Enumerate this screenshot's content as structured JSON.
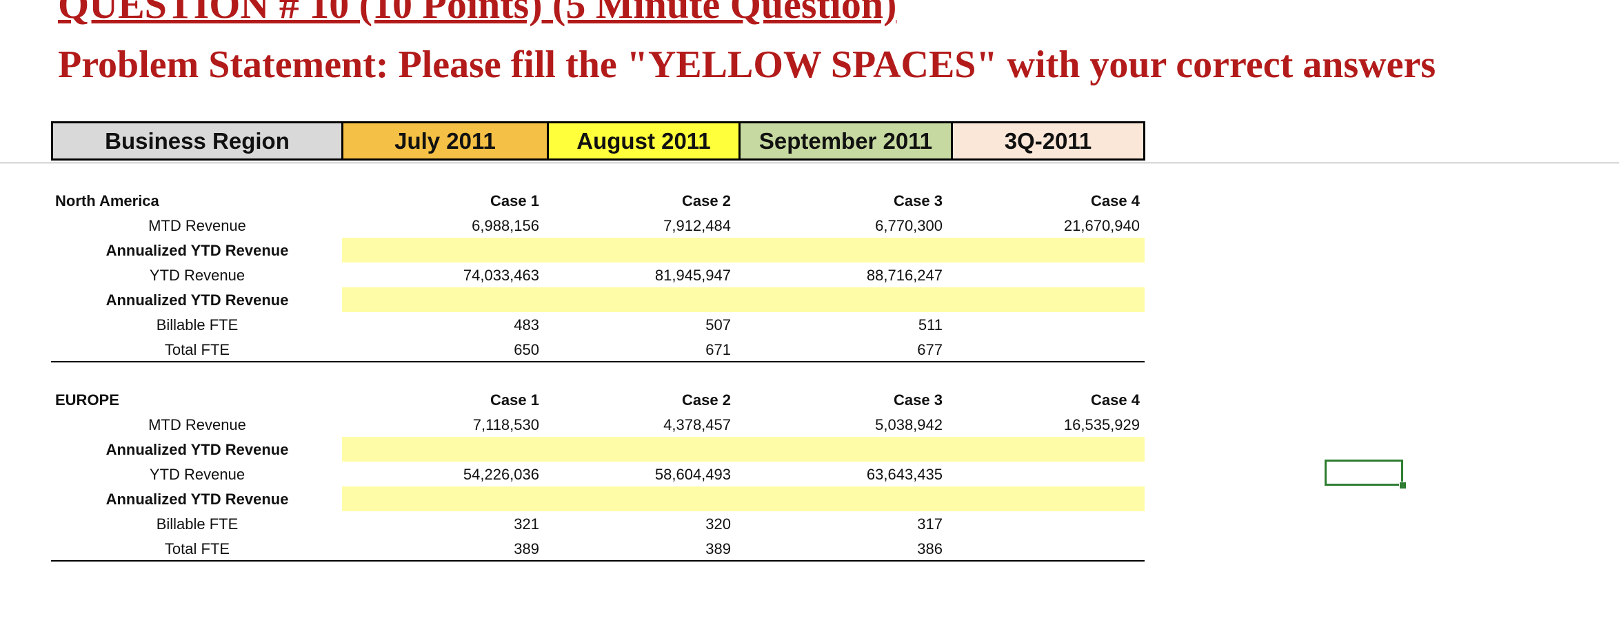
{
  "question": {
    "title": "QUESTION # 10 (10 Points) (5 Minute Question)",
    "subtitle": "Problem Statement: Please fill the \"YELLOW SPACES\" with your correct answers"
  },
  "header": {
    "business_region": "Business Region",
    "july": "July 2011",
    "august": "August 2011",
    "september": "September 2011",
    "quarter": "3Q-2011"
  },
  "colors": {
    "title_red": "#b31b1b",
    "header_grey": "#d9d9d9",
    "header_orange": "#f4c045",
    "header_yellow": "#ffff3b",
    "header_green": "#c6d9a0",
    "header_peach": "#fbe7d8",
    "answer_yellow": "#fffca8",
    "selection_green": "#2e7d32"
  },
  "regions": [
    {
      "name": "North America",
      "cases": [
        "Case 1",
        "Case 2",
        "Case 3",
        "Case 4"
      ],
      "mtd_label": "MTD Revenue",
      "mtd": [
        "6,988,156",
        "7,912,484",
        "6,770,300",
        "21,670,940"
      ],
      "annualized_label_1": "Annualized YTD Revenue",
      "ytd_label": "YTD Revenue",
      "ytd": [
        "74,033,463",
        "81,945,947",
        "88,716,247"
      ],
      "annualized_label_2": "Annualized YTD Revenue",
      "billable_label": "Billable FTE",
      "billable": [
        "483",
        "507",
        "511"
      ],
      "total_label": "Total FTE",
      "total": [
        "650",
        "671",
        "677"
      ]
    },
    {
      "name": "EUROPE",
      "cases": [
        "Case 1",
        "Case 2",
        "Case 3",
        "Case 4"
      ],
      "mtd_label": "MTD Revenue",
      "mtd": [
        "7,118,530",
        "4,378,457",
        "5,038,942",
        "16,535,929"
      ],
      "annualized_label_1": "Annualized YTD Revenue",
      "ytd_label": "YTD Revenue",
      "ytd": [
        "54,226,036",
        "58,604,493",
        "63,643,435"
      ],
      "annualized_label_2": "Annualized YTD Revenue",
      "billable_label": "Billable FTE",
      "billable": [
        "321",
        "320",
        "317"
      ],
      "total_label": "Total FTE",
      "total": [
        "389",
        "389",
        "386"
      ]
    }
  ]
}
